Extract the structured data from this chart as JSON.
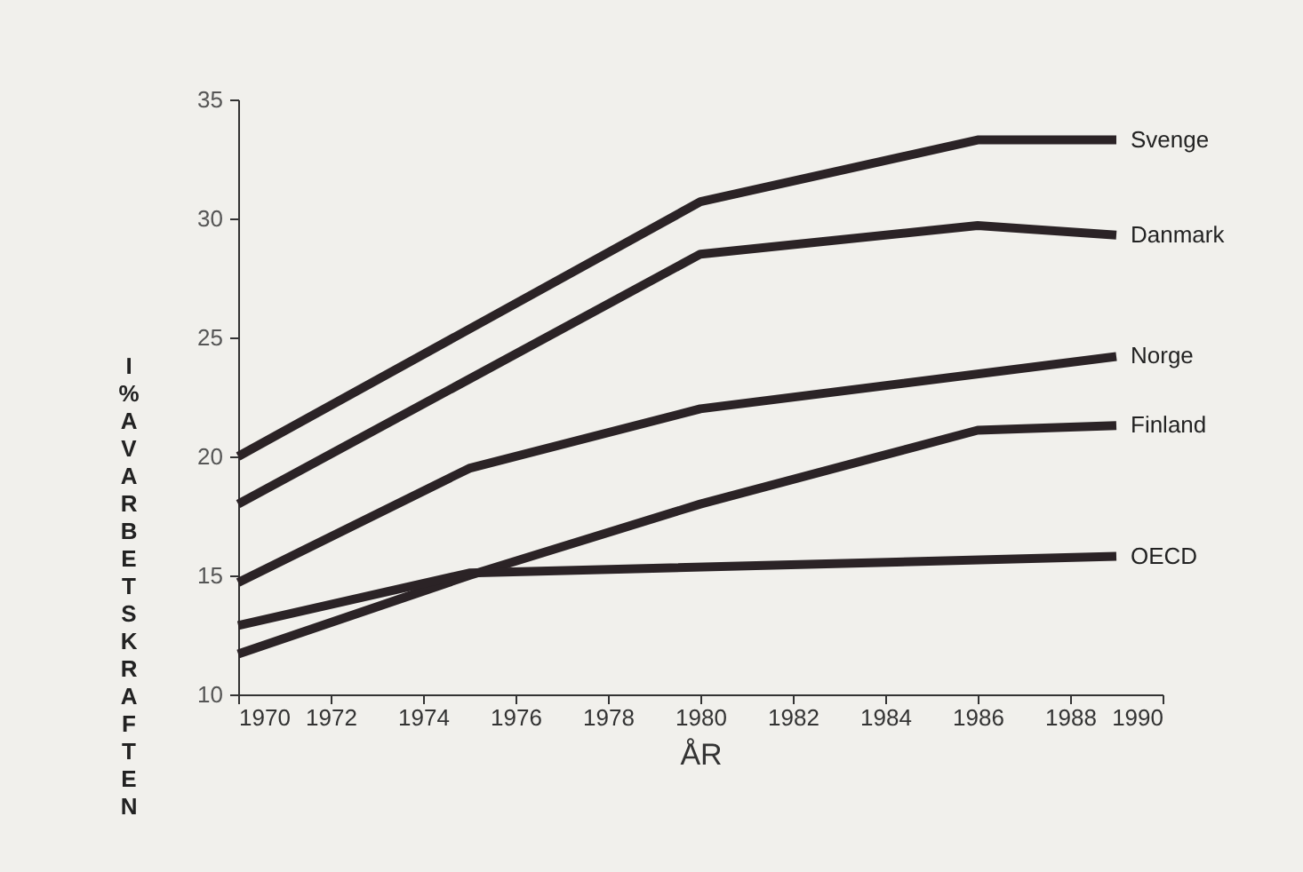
{
  "chart_data": {
    "type": "line",
    "ylabel": "I % AV ARBETSKRAFTEN",
    "xlabel": "ÅR",
    "xlim": [
      1970,
      1990
    ],
    "xticks": [
      1970,
      1972,
      1974,
      1976,
      1978,
      1980,
      1982,
      1984,
      1986,
      1988,
      1990
    ],
    "ylim": [
      10,
      35
    ],
    "yticks": [
      10,
      15,
      20,
      25,
      30,
      35
    ],
    "grid": false,
    "series": [
      {
        "name": "Svenge",
        "color": "#2b2326",
        "x": [
          1970,
          1980,
          1986,
          1989
        ],
        "values": [
          20,
          30.7,
          33.3,
          33.3
        ]
      },
      {
        "name": "Danmark",
        "color": "#2b2326",
        "x": [
          1970,
          1980,
          1986,
          1989
        ],
        "values": [
          18,
          28.5,
          29.7,
          29.3
        ]
      },
      {
        "name": "Norge",
        "color": "#2b2326",
        "x": [
          1970,
          1975,
          1980,
          1989
        ],
        "values": [
          14.7,
          19.5,
          22,
          24.2
        ]
      },
      {
        "name": "Finland",
        "color": "#2b2326",
        "x": [
          1970,
          1975,
          1980,
          1986,
          1989
        ],
        "values": [
          11.7,
          15,
          18,
          21.1,
          21.3
        ]
      },
      {
        "name": "OECD",
        "color": "#2b2326",
        "x": [
          1970,
          1975,
          1989
        ],
        "values": [
          12.9,
          15.1,
          15.8
        ]
      }
    ]
  }
}
